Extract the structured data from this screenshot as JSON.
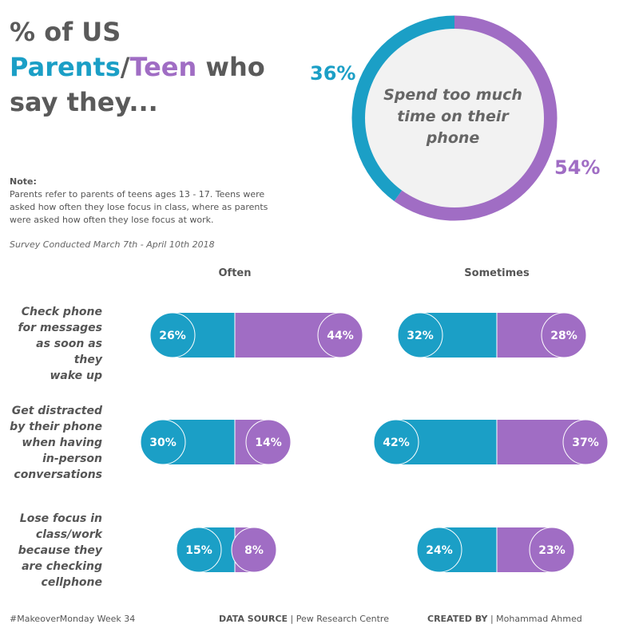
{
  "title": {
    "line1": "% of US",
    "parents": "Parents",
    "slash": "/",
    "teen": "Teen",
    "who": " who",
    "line3": "say they..."
  },
  "note": {
    "label": "Note:",
    "text": "Parents refer to parents of teens ages 13 - 17. Teens were asked how often they lose focus in class, where as parents were asked how often they lose focus at work.",
    "survey": "Survey Conducted March 7th - April 10th 2018"
  },
  "colors": {
    "parents": "#1b9fc6",
    "teen": "#a06dc4",
    "donut_center": "#f2f2f2"
  },
  "donut": {
    "label": "Spend too much time on their phone",
    "parents_label": "36%",
    "teen_label": "54%"
  },
  "chart_data": {
    "type": "bar",
    "columns": [
      "Often",
      "Sometimes"
    ],
    "categories": [
      "Check phone for messages as soon as they wake up",
      "Get distracted by their phone when having in-person conversations",
      "Lose focus in class/work because they are checking cellphone"
    ],
    "series": [
      {
        "name": "Parents",
        "often": [
          26,
          30,
          15
        ],
        "sometimes": [
          32,
          42,
          24
        ]
      },
      {
        "name": "Teen",
        "often": [
          44,
          14,
          8
        ],
        "sometimes": [
          28,
          37,
          23
        ]
      }
    ],
    "donut": {
      "Parents": 36,
      "Teen": 54
    }
  },
  "rows": [
    {
      "label": "Check phone for messages as soon as they wake up",
      "often": [
        "26%",
        "44%"
      ],
      "sometimes": [
        "32%",
        "28%"
      ]
    },
    {
      "label": "Get distracted by their phone when having in-person conversations",
      "often": [
        "30%",
        "14%"
      ],
      "sometimes": [
        "42%",
        "37%"
      ]
    },
    {
      "label": "Lose focus in class/work because they are checking cellphone",
      "often": [
        "15%",
        "8%"
      ],
      "sometimes": [
        "24%",
        "23%"
      ]
    }
  ],
  "footer": {
    "makeover": "#MakeoverMonday Week 34",
    "source_label": "DATA SOURCE",
    "source": " | Pew Research Centre",
    "created_label": "CREATED BY",
    "created": " | Mohammad Ahmed"
  }
}
